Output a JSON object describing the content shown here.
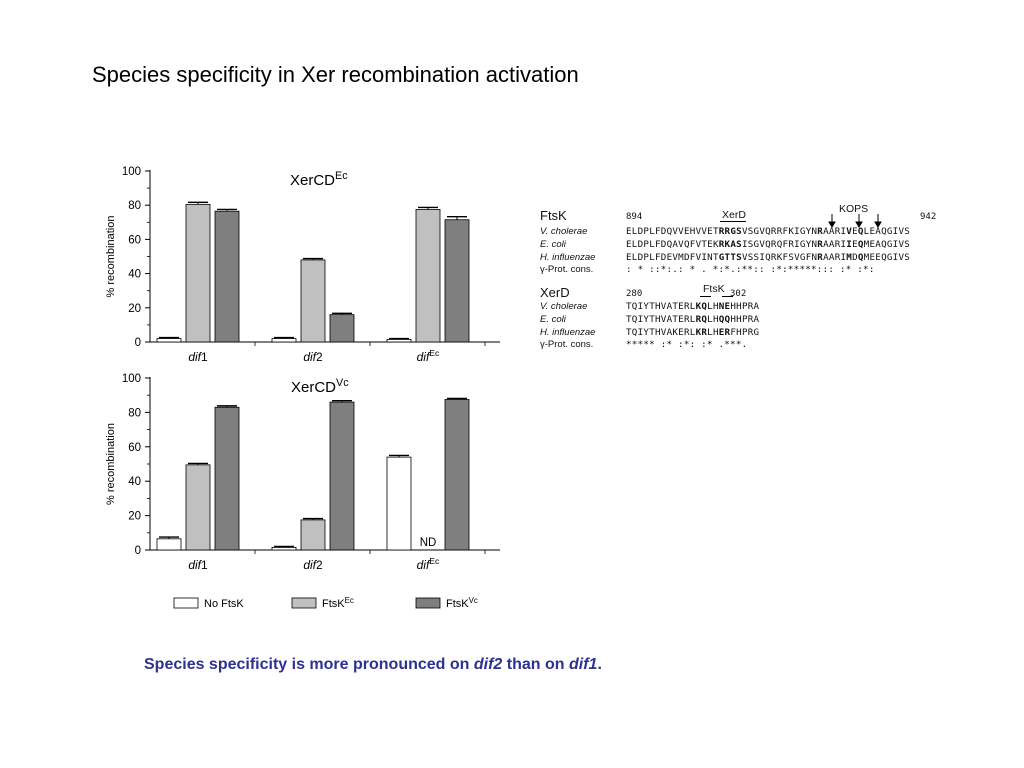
{
  "slide": {
    "title": "Species specificity in Xer recombination activation",
    "caption": {
      "part1": "Species specificity is more pronounced on ",
      "em1": "dif2",
      "part2": " than on ",
      "em2": "dif1",
      "part3": "."
    }
  },
  "chart_data": [
    {
      "type": "bar",
      "title": "XerCD",
      "title_sup": "Ec",
      "ylabel": "% recombination",
      "ylim": [
        0,
        100
      ],
      "yticks": [
        0,
        20,
        40,
        60,
        80,
        100
      ],
      "categories": [
        {
          "base": "dif",
          "suffix": "1"
        },
        {
          "base": "dif",
          "suffix": "2"
        },
        {
          "base": "dif",
          "sup": "Ec"
        }
      ],
      "series": [
        {
          "name": "No FtsK",
          "color": "#ffffff",
          "values": [
            2,
            2,
            1.5
          ],
          "errors": [
            0.6,
            0.6,
            0.5
          ]
        },
        {
          "name": "FtsK",
          "name_sup": "Ec",
          "color": "#c0c0c0",
          "values": [
            80.5,
            48,
            77.5
          ],
          "errors": [
            1.2,
            0.8,
            1.2
          ]
        },
        {
          "name": "FtsK",
          "name_sup": "Vc",
          "color": "#7f7f7f",
          "values": [
            76.5,
            16,
            71.5
          ],
          "errors": [
            1.0,
            0.8,
            1.8
          ]
        }
      ]
    },
    {
      "type": "bar",
      "title": "XerCD",
      "title_sup": "Vc",
      "ylabel": "% recombination",
      "ylim": [
        0,
        100
      ],
      "yticks": [
        0,
        20,
        40,
        60,
        80,
        100
      ],
      "categories": [
        {
          "base": "dif",
          "suffix": "1"
        },
        {
          "base": "dif",
          "suffix": "2"
        },
        {
          "base": "dif",
          "sup": "Ec"
        }
      ],
      "series": [
        {
          "name": "No FtsK",
          "color": "#ffffff",
          "values": [
            6.5,
            1.5,
            54
          ],
          "errors": [
            1.0,
            0.6,
            1.0
          ]
        },
        {
          "name": "FtsK",
          "name_sup": "Ec",
          "color": "#c0c0c0",
          "values": [
            49.5,
            17.5,
            null
          ],
          "errors": [
            0.8,
            0.8,
            0
          ]
        },
        {
          "name": "FtsK",
          "name_sup": "Vc",
          "color": "#7f7f7f",
          "values": [
            83,
            86,
            87.5
          ],
          "errors": [
            0.8,
            0.8,
            0.6
          ]
        }
      ],
      "annotations": [
        {
          "category_index": 2,
          "series_index": 1,
          "text": "ND"
        }
      ]
    }
  ],
  "legend": {
    "items": [
      {
        "label": "No FtsK",
        "sup": "",
        "color": "#ffffff"
      },
      {
        "label": "FtsK",
        "sup": "Ec",
        "color": "#c0c0c0"
      },
      {
        "label": "FtsK",
        "sup": "Vc",
        "color": "#7f7f7f"
      }
    ]
  },
  "alignment": {
    "block1": {
      "header": "FtsK",
      "start": "894",
      "end": "942",
      "tag1": "XerD",
      "tag2": "KOPS",
      "rows": [
        {
          "label": "V. cholerae",
          "seq": "ELDPLFDQVVEHVVETRRGSVSGVQRRFKIGYNRAARIVEQLEAQGIVS"
        },
        {
          "label": "E. coli",
          "seq": "ELDPLFDQAVQFVTEKRKASISGVQRQFRIGYNRAARIIEQMEAQGIVS"
        },
        {
          "label": "H. influenzae",
          "seq": "ELDPLFDEVMDFVINTGTTSVSSIQRKFSVGFNRAARIMDQMEEQGIVS"
        },
        {
          "label": "γ-Prot. cons.",
          "seq": ": * ::*:.:  *  .   *:*.:**:: :*:*****::: :*   :*:"
        }
      ]
    },
    "block2": {
      "header": "XerD",
      "start": "280",
      "end": "302",
      "tag1": "FtsK",
      "rows": [
        {
          "label": "V. cholerae",
          "seq": "TQIYTHVATERLKQLHNEHHPRA"
        },
        {
          "label": "E. coli",
          "seq": "TQIYTHVATERLRQLHQQHHPRA"
        },
        {
          "label": "H. influenzae",
          "seq": "TQIYTHVAKERLKRLHERFHPRG"
        },
        {
          "label": "γ-Prot. cons.",
          "seq": "***** :*  :*: :*  .***."
        }
      ]
    }
  }
}
